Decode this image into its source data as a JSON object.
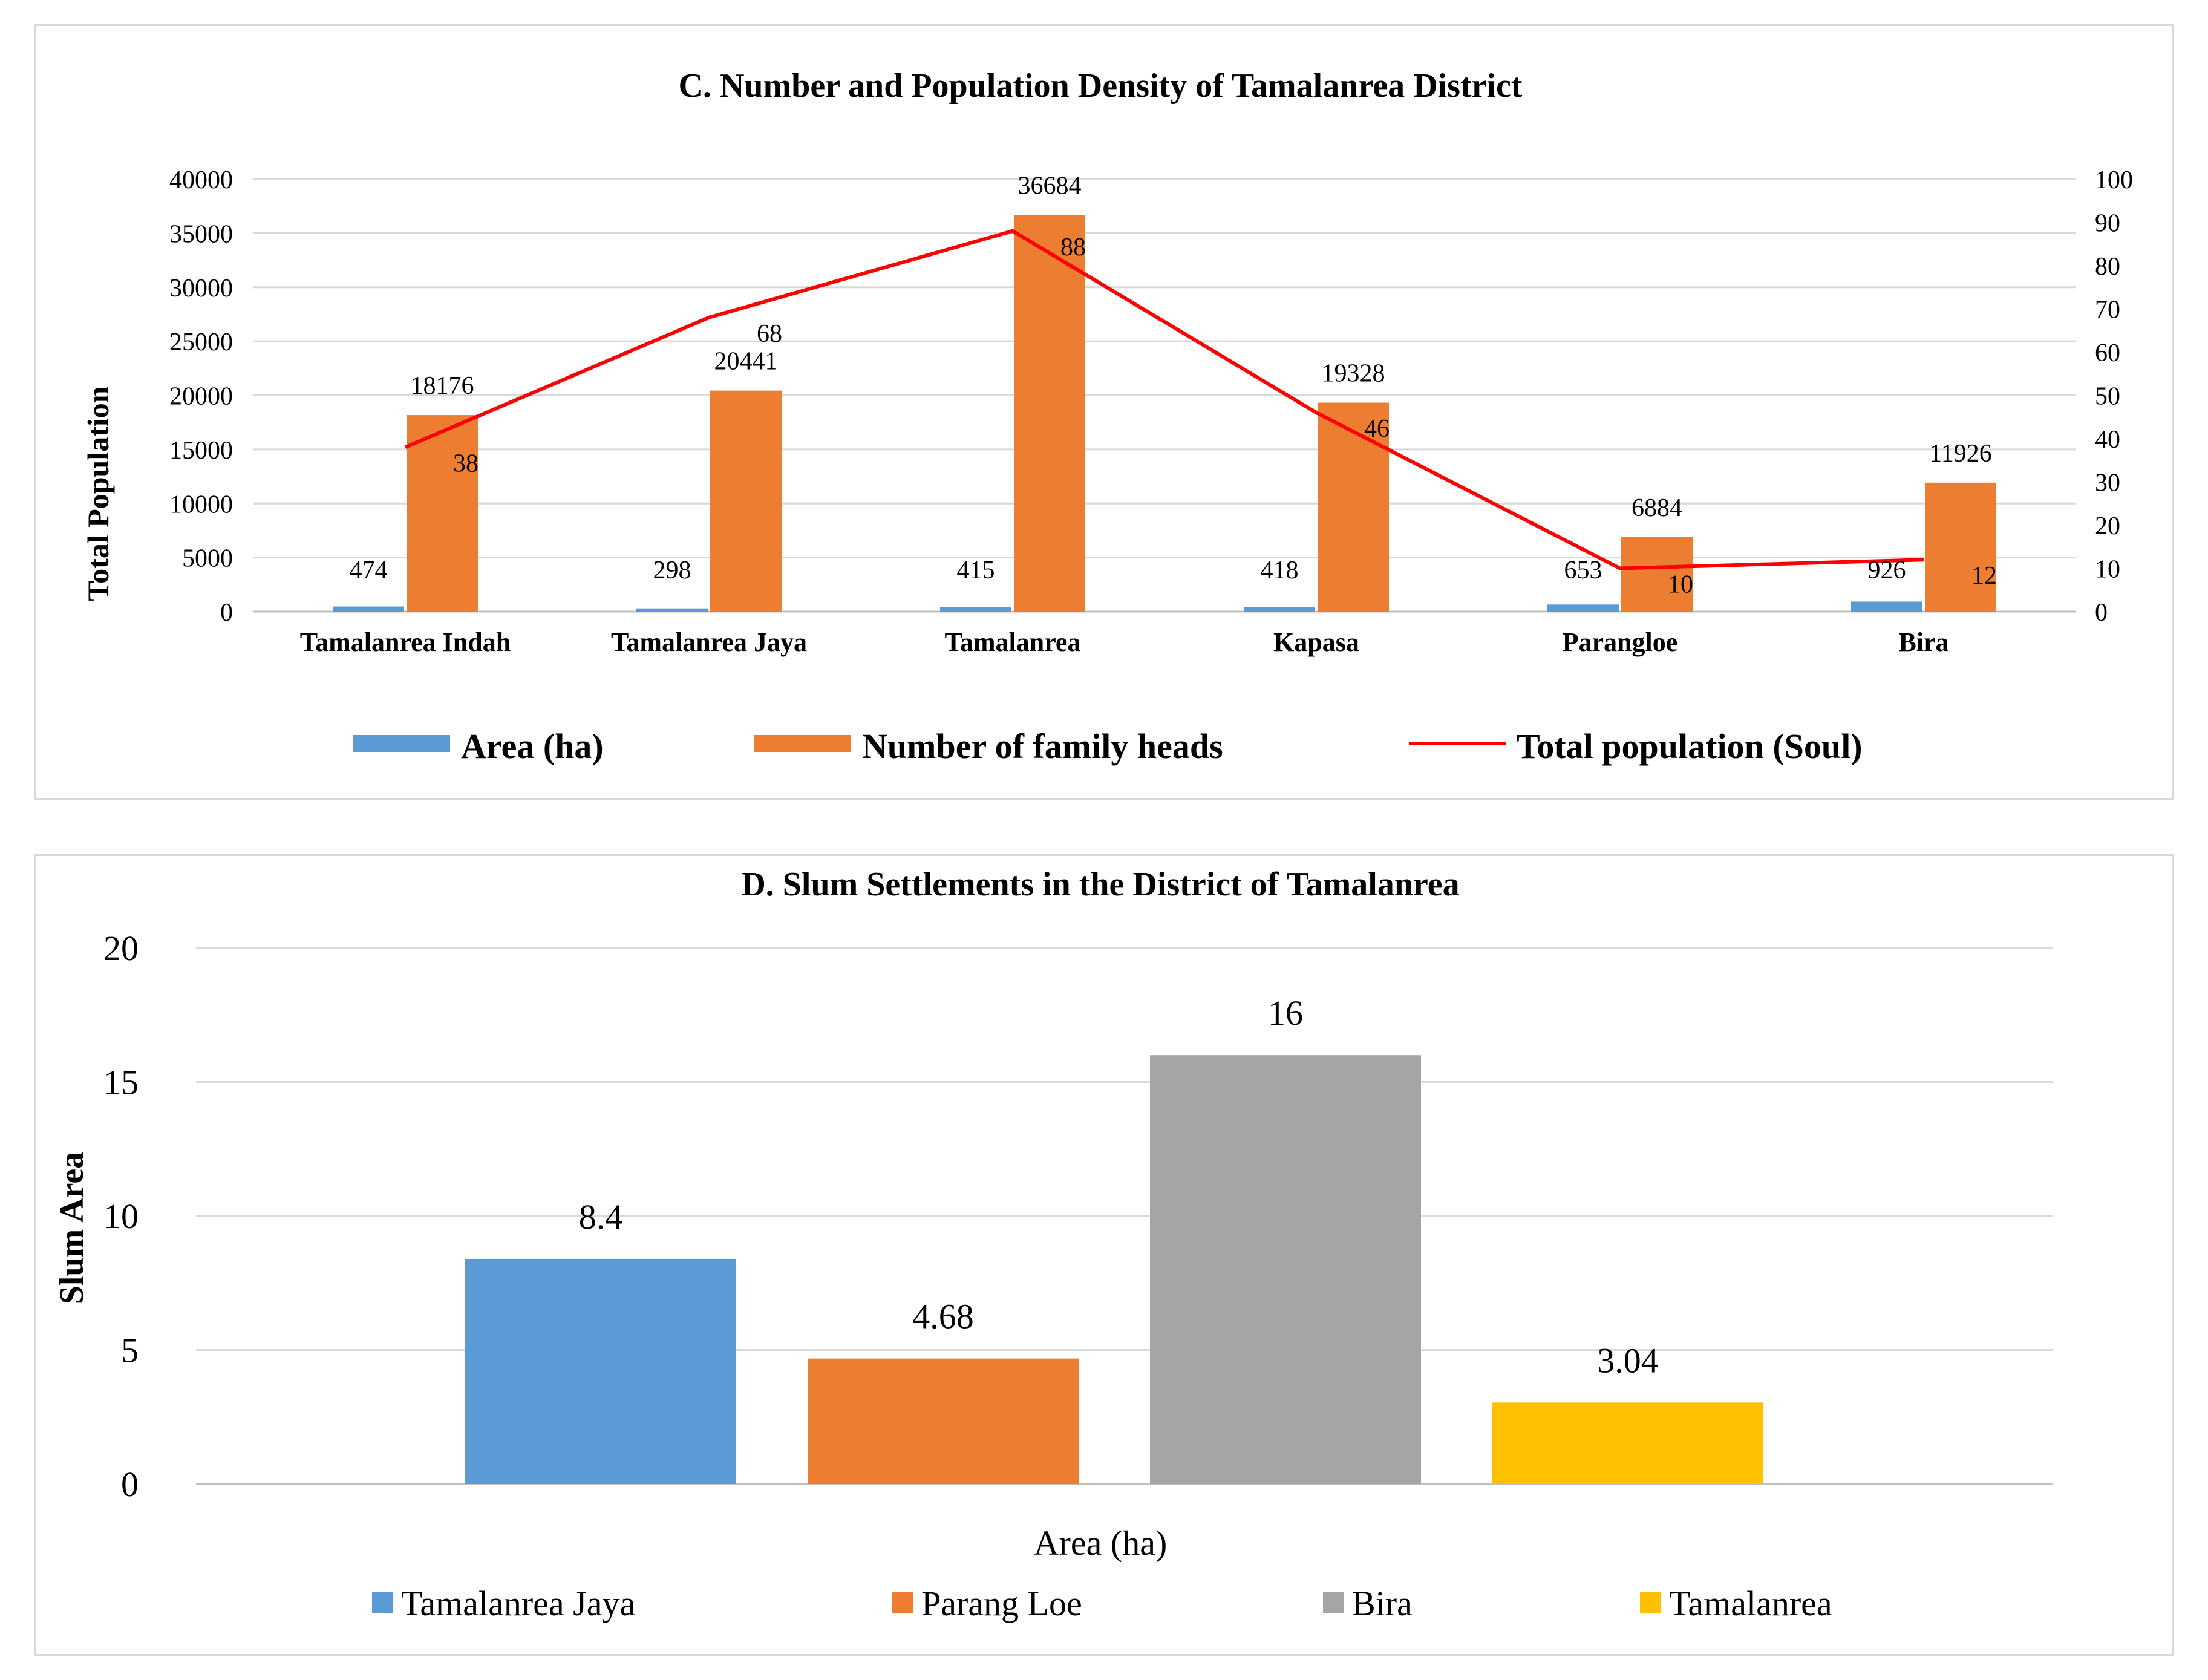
{
  "chart_data": [
    {
      "type": "bar",
      "title": "C. Number and Population Density of Tamalanrea District",
      "ylabel": "Total Population",
      "ylim": [
        0,
        40000
      ],
      "y_ticks": [
        "0",
        "5000",
        "10000",
        "15000",
        "20000",
        "25000",
        "30000",
        "35000",
        "40000"
      ],
      "y2lim": [
        0,
        100
      ],
      "y2_ticks": [
        "0",
        "10",
        "20",
        "30",
        "40",
        "50",
        "60",
        "70",
        "80",
        "90",
        "100"
      ],
      "categories": [
        "Tamalanrea Indah",
        "Tamalanrea Jaya",
        "Tamalanrea",
        "Kapasa",
        "Parangloe",
        "Bira"
      ],
      "series": [
        {
          "name": "Area (ha)",
          "kind": "bar",
          "axis": "left",
          "color": "#5b9bd5",
          "values": [
            474,
            298,
            415,
            418,
            653,
            926
          ],
          "labels": [
            "474",
            "298",
            "415",
            "418",
            "653",
            "926"
          ]
        },
        {
          "name": "Number of family heads",
          "kind": "bar",
          "axis": "left",
          "color": "#ed7d31",
          "values": [
            18176,
            20441,
            36684,
            19328,
            6884,
            11926
          ],
          "labels": [
            "18176",
            "20441",
            "36684",
            "19328",
            "6884",
            "11926"
          ]
        },
        {
          "name": "Total population (Soul)",
          "kind": "line",
          "axis": "right",
          "color": "#ff0000",
          "values": [
            38,
            68,
            88,
            46,
            10,
            12
          ],
          "labels": [
            "38",
            "68",
            "88",
            "46",
            "10",
            "12"
          ]
        }
      ],
      "legend": [
        "Area (ha)",
        "Number of family heads",
        "Total population (Soul)"
      ],
      "legend_position": "bottom",
      "grid": true
    },
    {
      "type": "bar",
      "title": "D. Slum Settlements in the District of Tamalanrea",
      "ylabel": "Slum Area",
      "xlabel": "Area (ha)",
      "ylim": [
        0,
        20
      ],
      "y_ticks": [
        "0",
        "5",
        "10",
        "15",
        "20"
      ],
      "series": [
        {
          "name": "Tamalanrea Jaya",
          "value": 8.4,
          "label": "8.4",
          "color": "#5b9bd5"
        },
        {
          "name": "Parang Loe",
          "value": 4.68,
          "label": "4.68",
          "color": "#ed7d31"
        },
        {
          "name": "Bira",
          "value": 16,
          "label": "16",
          "color": "#a5a5a5"
        },
        {
          "name": "Tamalanrea",
          "value": 3.04,
          "label": "3.04",
          "color": "#ffc000"
        }
      ],
      "legend_position": "bottom",
      "grid": true
    }
  ]
}
